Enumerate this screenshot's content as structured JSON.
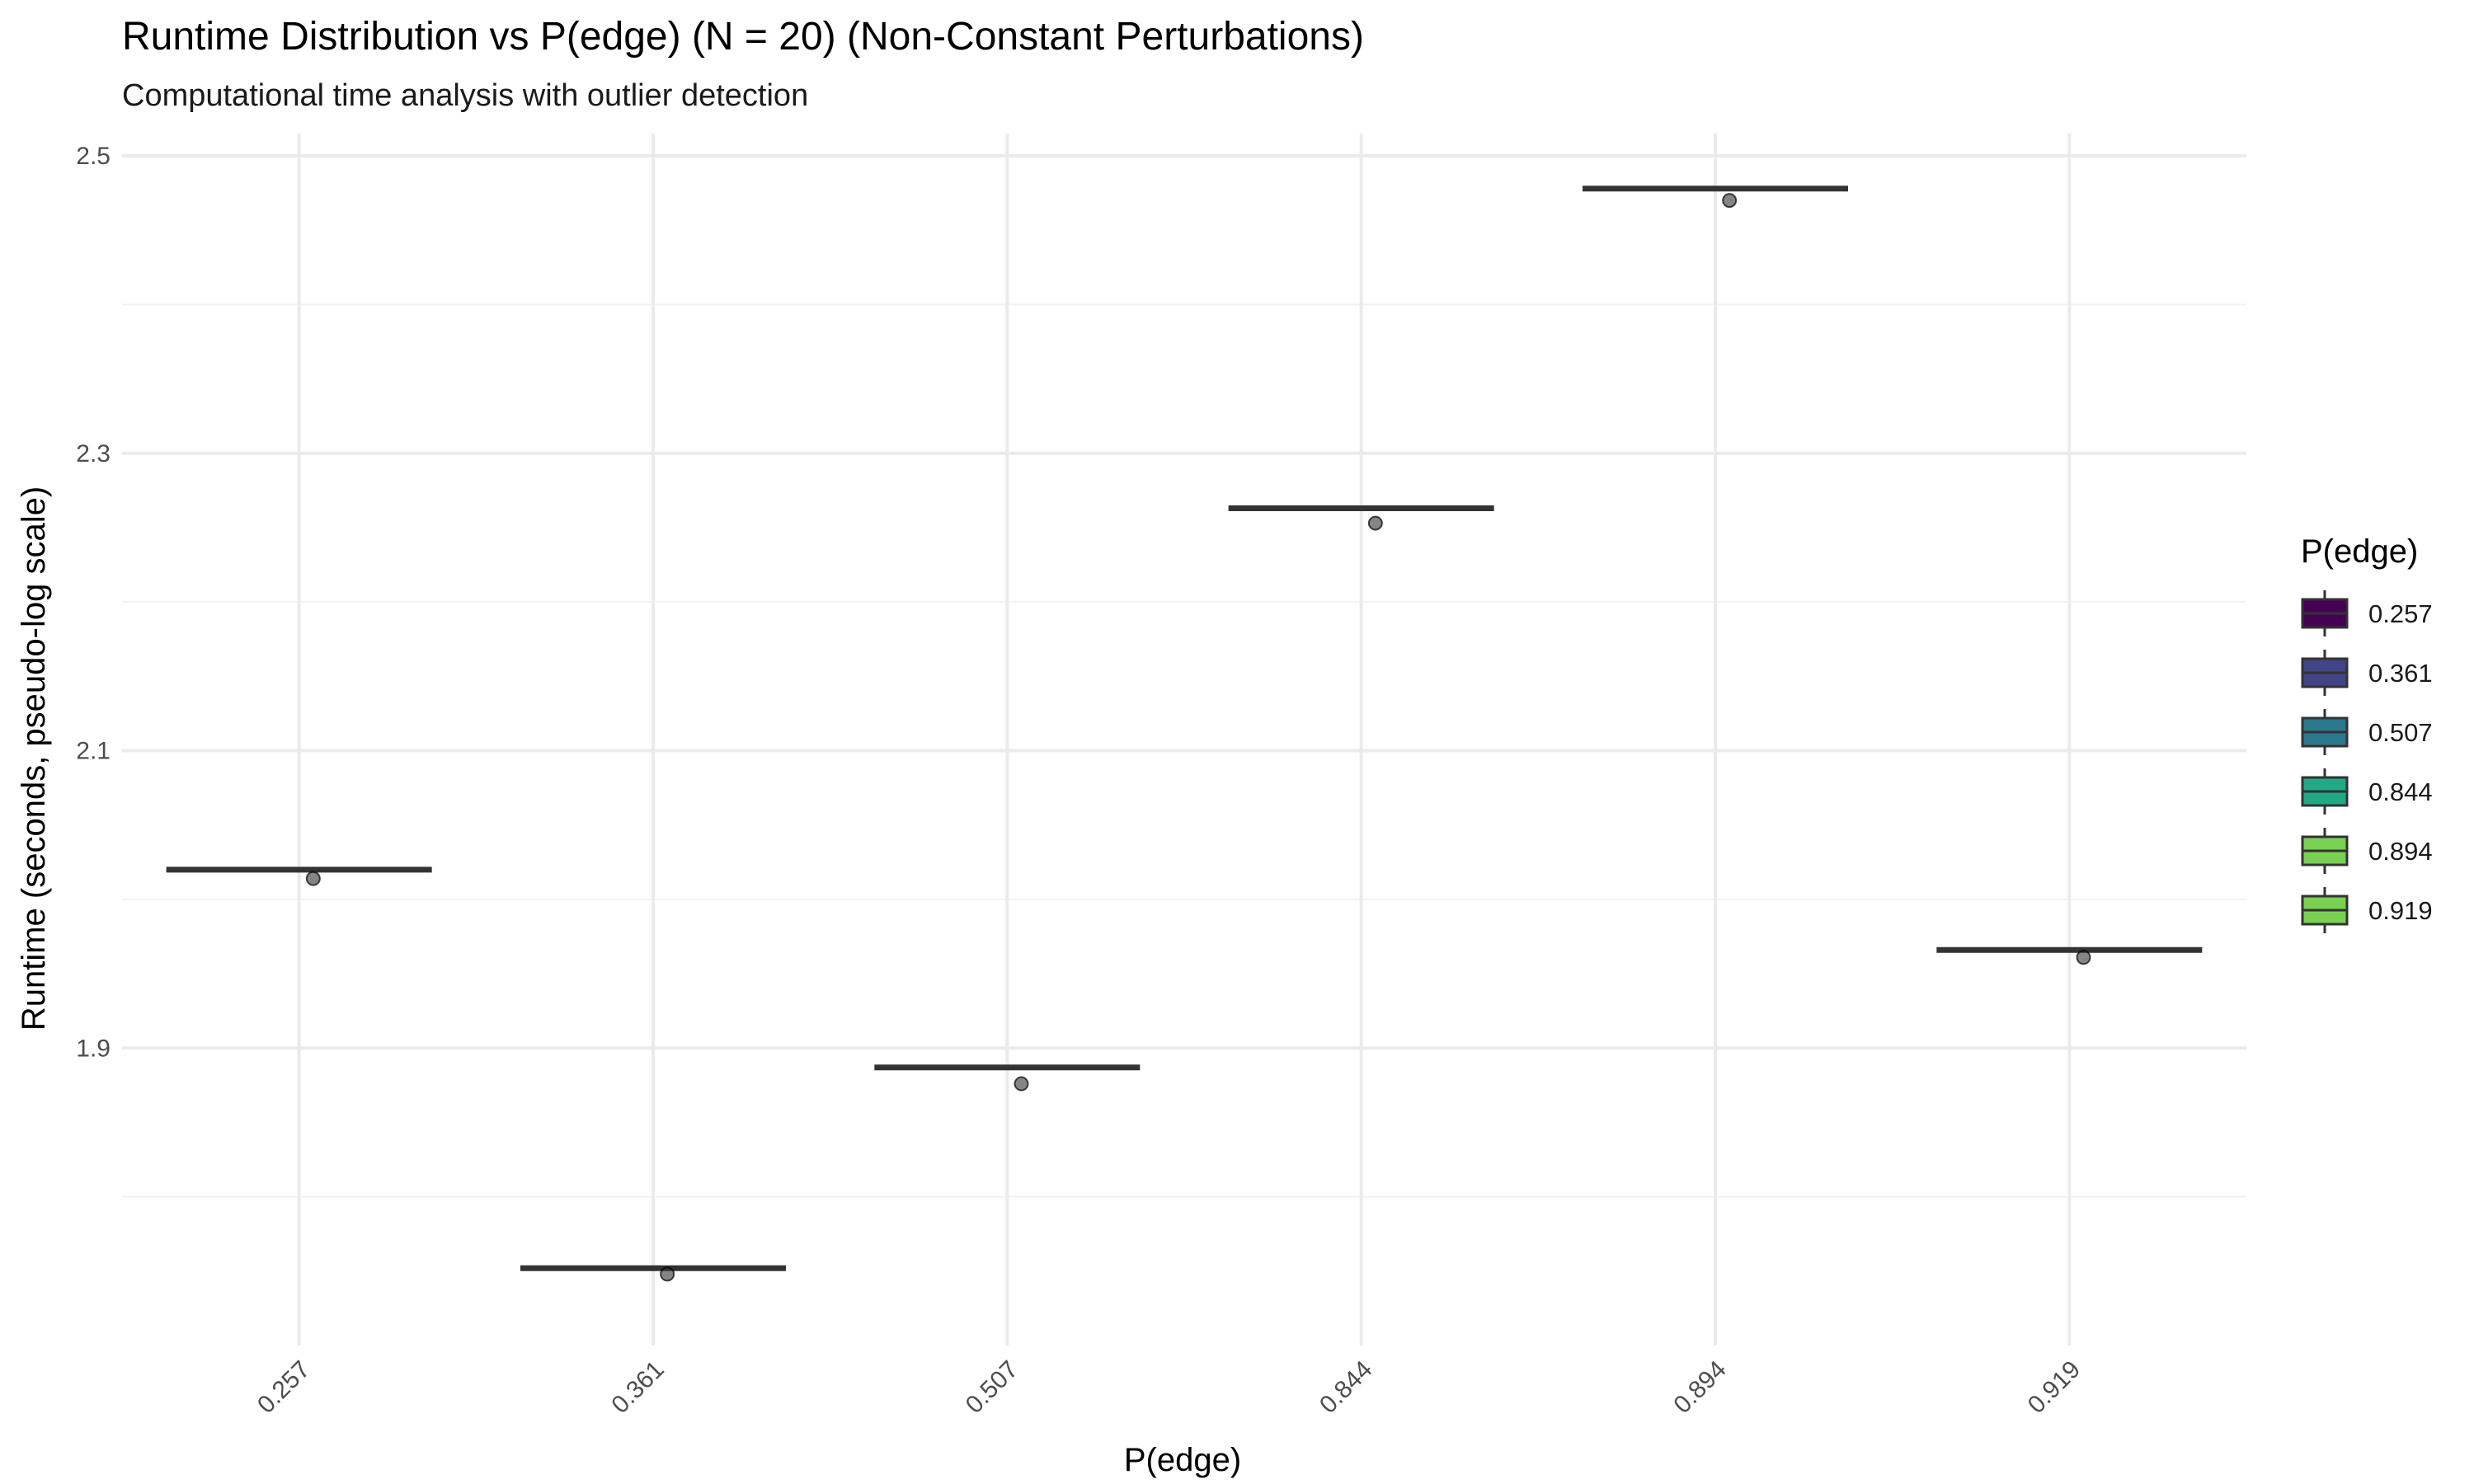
{
  "chart_data": {
    "type": "box",
    "title": "Runtime Distribution vs P(edge) (N = 20) (Non-Constant Perturbations)",
    "subtitle": "Computational time analysis with outlier detection",
    "xlabel": "P(edge)",
    "ylabel": "Runtime (seconds, pseudo-log scale)",
    "categories": [
      "0.257",
      "0.361",
      "0.507",
      "0.844",
      "0.894",
      "0.919"
    ],
    "medians": [
      2.02,
      1.752,
      1.887,
      2.263,
      2.478,
      1.966
    ],
    "points": [
      {
        "category": "0.257",
        "y": 2.014
      },
      {
        "category": "0.361",
        "y": 1.748
      },
      {
        "category": "0.507",
        "y": 1.876
      },
      {
        "category": "0.844",
        "y": 2.253
      },
      {
        "category": "0.894",
        "y": 2.47
      },
      {
        "category": "0.919",
        "y": 1.961
      }
    ],
    "yticks": [
      1.9,
      2.1,
      2.3,
      2.5
    ],
    "ytick_labels": [
      "1.9",
      "2.1",
      "2.3",
      "2.5"
    ],
    "ylim": [
      1.7,
      2.515
    ],
    "grid": true,
    "legend": {
      "title": "P(edge)",
      "position": "right",
      "entries": [
        "0.257",
        "0.361",
        "0.507",
        "0.844",
        "0.894",
        "0.919"
      ],
      "colors": [
        "#440154",
        "#414487",
        "#2A788E",
        "#22A884",
        "#7AD151",
        "#7AD151"
      ]
    }
  }
}
